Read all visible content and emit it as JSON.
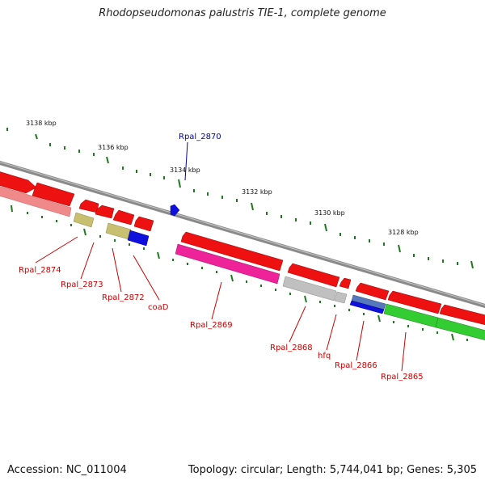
{
  "title": "Rhodopseudomonas palustris TIE-1, complete genome",
  "footer": {
    "accession": "Accession: NC_011004",
    "summary": "Topology: circular; Length: 5,744,041 bp; Genes: 5,305"
  },
  "colors": {
    "backbone": "#8a8a8a",
    "tick": "#1f7a1f",
    "label_reverse": "#cc0000",
    "label_forward": "#0000aa"
  },
  "ticks": [
    "3138 kbp",
    "3136 kbp",
    "3134 kbp",
    "3132 kbp",
    "3130 kbp",
    "3128 kbp"
  ],
  "genes": [
    {
      "name": "Rpal_2874",
      "color": "#cc0000"
    },
    {
      "name": "Rpal_2873",
      "color": "#cc0000"
    },
    {
      "name": "Rpal_2872",
      "color": "#cc0000"
    },
    {
      "name": "coaD",
      "color": "#cc0000"
    },
    {
      "name": "Rpal_2870",
      "color": "#0000aa"
    },
    {
      "name": "Rpal_2869",
      "color": "#cc0000"
    },
    {
      "name": "Rpal_2868",
      "color": "#cc0000"
    },
    {
      "name": "hfq",
      "color": "#cc0000"
    },
    {
      "name": "Rpal_2866",
      "color": "#cc0000"
    },
    {
      "name": "Rpal_2865",
      "color": "#cc0000"
    }
  ]
}
